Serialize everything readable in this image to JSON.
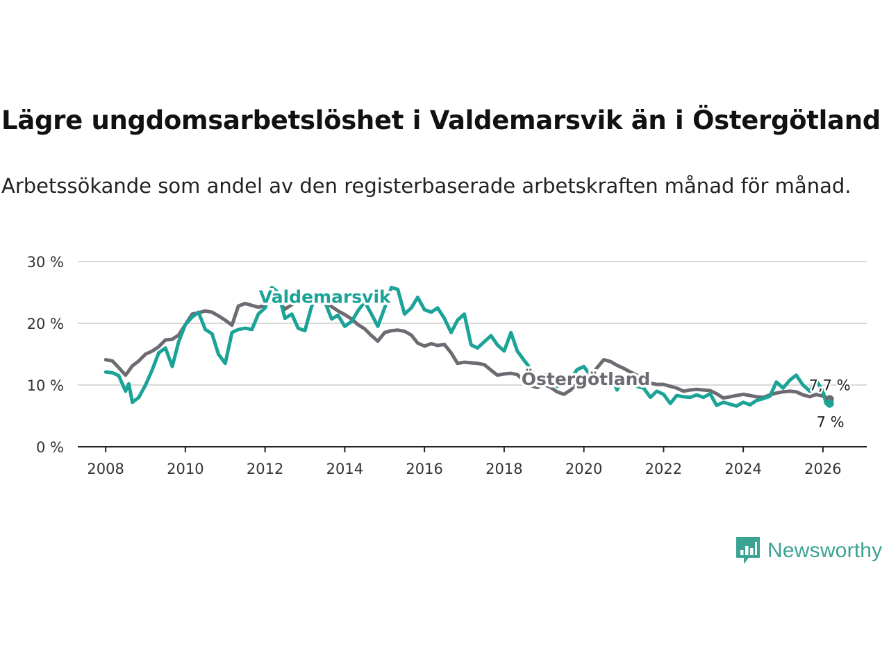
{
  "header": {
    "title": "Lägre ungdomsarbetslöshet i Valdemarsvik än i Östergötland",
    "subtitle": "Arbetssökande som andel av den registerbaserade arbetskraften månad för månad."
  },
  "brand": {
    "name": "Newsworthy",
    "icon": "newsworthy-bar-chart-icon",
    "color": "#3aa391"
  },
  "chart_data": {
    "type": "line",
    "title": "Lägre ungdomsarbetslöshet i Valdemarsvik än i Östergötland",
    "subtitle": "Arbetssökande som andel av den registerbaserade arbetskraften månad för månad.",
    "xlabel": "",
    "ylabel": "",
    "xlim": [
      2007.3,
      2027.1
    ],
    "ylim": [
      0,
      30
    ],
    "grid": true,
    "x_ticks": [
      2008,
      2010,
      2012,
      2014,
      2016,
      2018,
      2020,
      2022,
      2024,
      2026
    ],
    "x_tick_labels": [
      "2008",
      "2010",
      "2012",
      "2014",
      "2016",
      "2018",
      "2020",
      "2022",
      "2024",
      "2026"
    ],
    "y_ticks": [
      0,
      10,
      20,
      30
    ],
    "y_tick_labels": [
      "0 %",
      "10 %",
      "20 %",
      "30 %"
    ],
    "series": [
      {
        "name": "Östergötland",
        "color": "#6d6b71",
        "end_label": "7,7 %",
        "points": [
          [
            2008.0,
            14.1
          ],
          [
            2008.17,
            13.9
          ],
          [
            2008.33,
            12.8
          ],
          [
            2008.5,
            11.6
          ],
          [
            2008.67,
            13.1
          ],
          [
            2008.83,
            13.9
          ],
          [
            2009.0,
            15.0
          ],
          [
            2009.17,
            15.5
          ],
          [
            2009.33,
            16.2
          ],
          [
            2009.5,
            17.3
          ],
          [
            2009.67,
            17.4
          ],
          [
            2009.83,
            18.1
          ],
          [
            2010.0,
            19.8
          ],
          [
            2010.17,
            21.5
          ],
          [
            2010.33,
            21.7
          ],
          [
            2010.5,
            22.0
          ],
          [
            2010.67,
            21.8
          ],
          [
            2010.83,
            21.2
          ],
          [
            2011.0,
            20.5
          ],
          [
            2011.17,
            19.7
          ],
          [
            2011.33,
            22.8
          ],
          [
            2011.5,
            23.2
          ],
          [
            2011.67,
            22.9
          ],
          [
            2011.83,
            22.6
          ],
          [
            2012.0,
            22.9
          ],
          [
            2012.17,
            23.8
          ],
          [
            2012.33,
            23.6
          ],
          [
            2012.5,
            22.3
          ],
          [
            2012.67,
            23.0
          ],
          [
            2012.83,
            23.8
          ],
          [
            2013.0,
            24.3
          ],
          [
            2013.17,
            24.4
          ],
          [
            2013.33,
            24.1
          ],
          [
            2013.5,
            23.4
          ],
          [
            2013.67,
            22.7
          ],
          [
            2013.83,
            22.0
          ],
          [
            2014.0,
            21.4
          ],
          [
            2014.17,
            20.7
          ],
          [
            2014.33,
            19.8
          ],
          [
            2014.5,
            19.1
          ],
          [
            2014.67,
            18.0
          ],
          [
            2014.83,
            17.1
          ],
          [
            2015.0,
            18.5
          ],
          [
            2015.17,
            18.8
          ],
          [
            2015.33,
            18.9
          ],
          [
            2015.5,
            18.7
          ],
          [
            2015.67,
            18.1
          ],
          [
            2015.83,
            16.8
          ],
          [
            2016.0,
            16.3
          ],
          [
            2016.17,
            16.7
          ],
          [
            2016.33,
            16.4
          ],
          [
            2016.5,
            16.6
          ],
          [
            2016.67,
            15.2
          ],
          [
            2016.83,
            13.5
          ],
          [
            2017.0,
            13.7
          ],
          [
            2017.17,
            13.6
          ],
          [
            2017.33,
            13.5
          ],
          [
            2017.5,
            13.3
          ],
          [
            2017.67,
            12.4
          ],
          [
            2017.83,
            11.6
          ],
          [
            2018.0,
            11.8
          ],
          [
            2018.17,
            11.9
          ],
          [
            2018.33,
            11.7
          ],
          [
            2018.5,
            10.6
          ],
          [
            2018.67,
            9.9
          ],
          [
            2018.83,
            9.6
          ],
          [
            2019.0,
            10.1
          ],
          [
            2019.17,
            9.6
          ],
          [
            2019.33,
            8.9
          ],
          [
            2019.5,
            8.5
          ],
          [
            2019.67,
            9.2
          ],
          [
            2019.83,
            10.3
          ],
          [
            2020.0,
            10.9
          ],
          [
            2020.17,
            11.4
          ],
          [
            2020.33,
            12.8
          ],
          [
            2020.5,
            14.1
          ],
          [
            2020.67,
            13.8
          ],
          [
            2020.83,
            13.2
          ],
          [
            2021.0,
            12.7
          ],
          [
            2021.17,
            12.1
          ],
          [
            2021.33,
            11.6
          ],
          [
            2021.5,
            10.9
          ],
          [
            2021.67,
            10.3
          ],
          [
            2021.83,
            10.1
          ],
          [
            2022.0,
            10.1
          ],
          [
            2022.17,
            9.8
          ],
          [
            2022.33,
            9.5
          ],
          [
            2022.5,
            9.0
          ],
          [
            2022.67,
            9.2
          ],
          [
            2022.83,
            9.3
          ],
          [
            2023.0,
            9.2
          ],
          [
            2023.17,
            9.1
          ],
          [
            2023.33,
            8.6
          ],
          [
            2023.5,
            7.9
          ],
          [
            2023.67,
            8.1
          ],
          [
            2023.83,
            8.3
          ],
          [
            2024.0,
            8.5
          ],
          [
            2024.17,
            8.3
          ],
          [
            2024.33,
            8.1
          ],
          [
            2024.5,
            8.0
          ],
          [
            2024.67,
            8.4
          ],
          [
            2024.83,
            8.7
          ],
          [
            2025.0,
            8.9
          ],
          [
            2025.17,
            9.0
          ],
          [
            2025.33,
            8.9
          ],
          [
            2025.5,
            8.4
          ],
          [
            2025.67,
            8.1
          ],
          [
            2025.83,
            8.5
          ],
          [
            2026.0,
            8.2
          ],
          [
            2026.17,
            7.7
          ]
        ]
      },
      {
        "name": "Valdemarsvik",
        "color": "#1aa396",
        "end_label": "7 %",
        "points": [
          [
            2008.0,
            12.1
          ],
          [
            2008.17,
            12.0
          ],
          [
            2008.33,
            11.5
          ],
          [
            2008.5,
            9.0
          ],
          [
            2008.58,
            10.2
          ],
          [
            2008.67,
            7.2
          ],
          [
            2008.83,
            8.0
          ],
          [
            2009.0,
            10.0
          ],
          [
            2009.17,
            12.5
          ],
          [
            2009.33,
            15.2
          ],
          [
            2009.5,
            16.0
          ],
          [
            2009.67,
            13.0
          ],
          [
            2009.83,
            17.0
          ],
          [
            2010.0,
            19.8
          ],
          [
            2010.17,
            21.0
          ],
          [
            2010.33,
            21.8
          ],
          [
            2010.5,
            19.0
          ],
          [
            2010.67,
            18.3
          ],
          [
            2010.83,
            15.0
          ],
          [
            2011.0,
            13.5
          ],
          [
            2011.17,
            18.5
          ],
          [
            2011.33,
            19.0
          ],
          [
            2011.5,
            19.2
          ],
          [
            2011.67,
            19.0
          ],
          [
            2011.83,
            21.5
          ],
          [
            2012.0,
            22.5
          ],
          [
            2012.17,
            25.8
          ],
          [
            2012.33,
            25.0
          ],
          [
            2012.5,
            20.8
          ],
          [
            2012.67,
            21.5
          ],
          [
            2012.83,
            19.2
          ],
          [
            2013.0,
            18.8
          ],
          [
            2013.17,
            22.8
          ],
          [
            2013.33,
            24.2
          ],
          [
            2013.5,
            23.5
          ],
          [
            2013.67,
            20.7
          ],
          [
            2013.83,
            21.3
          ],
          [
            2014.0,
            19.5
          ],
          [
            2014.17,
            20.3
          ],
          [
            2014.33,
            22.0
          ],
          [
            2014.5,
            23.5
          ],
          [
            2014.67,
            21.5
          ],
          [
            2014.83,
            19.5
          ],
          [
            2015.0,
            22.5
          ],
          [
            2015.17,
            25.8
          ],
          [
            2015.33,
            25.5
          ],
          [
            2015.5,
            21.5
          ],
          [
            2015.67,
            22.5
          ],
          [
            2015.83,
            24.2
          ],
          [
            2016.0,
            22.2
          ],
          [
            2016.17,
            21.8
          ],
          [
            2016.33,
            22.5
          ],
          [
            2016.5,
            20.8
          ],
          [
            2016.67,
            18.5
          ],
          [
            2016.83,
            20.5
          ],
          [
            2017.0,
            21.5
          ],
          [
            2017.17,
            16.5
          ],
          [
            2017.33,
            16.0
          ],
          [
            2017.5,
            17.0
          ],
          [
            2017.67,
            18.0
          ],
          [
            2017.83,
            16.5
          ],
          [
            2018.0,
            15.5
          ],
          [
            2018.17,
            18.5
          ],
          [
            2018.33,
            15.5
          ],
          [
            2018.5,
            14.0
          ],
          [
            2018.67,
            12.6
          ],
          [
            2018.83,
            11.0
          ],
          [
            2019.0,
            11.5
          ],
          [
            2019.17,
            12.0
          ],
          [
            2019.33,
            9.8
          ],
          [
            2019.5,
            10.2
          ],
          [
            2019.67,
            11.0
          ],
          [
            2019.83,
            12.5
          ],
          [
            2020.0,
            13.0
          ],
          [
            2020.17,
            11.5
          ],
          [
            2020.33,
            10.6
          ],
          [
            2020.5,
            11.3
          ],
          [
            2020.67,
            12.0
          ],
          [
            2020.83,
            9.2
          ],
          [
            2021.0,
            11.2
          ],
          [
            2021.17,
            10.5
          ],
          [
            2021.33,
            9.8
          ],
          [
            2021.5,
            9.5
          ],
          [
            2021.67,
            8.0
          ],
          [
            2021.83,
            9.0
          ],
          [
            2022.0,
            8.5
          ],
          [
            2022.17,
            7.0
          ],
          [
            2022.33,
            8.3
          ],
          [
            2022.5,
            8.1
          ],
          [
            2022.67,
            8.0
          ],
          [
            2022.83,
            8.4
          ],
          [
            2023.0,
            8.0
          ],
          [
            2023.17,
            8.6
          ],
          [
            2023.33,
            6.7
          ],
          [
            2023.5,
            7.2
          ],
          [
            2023.67,
            6.9
          ],
          [
            2023.83,
            6.6
          ],
          [
            2024.0,
            7.2
          ],
          [
            2024.17,
            6.8
          ],
          [
            2024.33,
            7.5
          ],
          [
            2024.5,
            7.8
          ],
          [
            2024.67,
            8.2
          ],
          [
            2024.83,
            10.5
          ],
          [
            2025.0,
            9.5
          ],
          [
            2025.17,
            10.8
          ],
          [
            2025.33,
            11.6
          ],
          [
            2025.5,
            10.0
          ],
          [
            2025.67,
            9.0
          ],
          [
            2025.83,
            10.8
          ],
          [
            2026.0,
            9.0
          ],
          [
            2026.08,
            7.0
          ],
          [
            2026.17,
            7.0
          ]
        ]
      }
    ]
  }
}
